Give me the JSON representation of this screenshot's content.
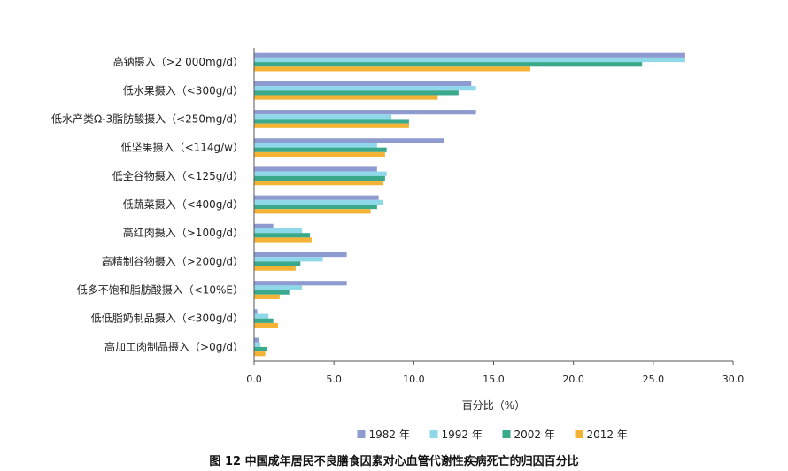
{
  "chart_data": {
    "type": "bar",
    "orientation": "horizontal",
    "categories": [
      "高钠摄入（>2 000mg/d）",
      "低水果摄入（<300g/d）",
      "低水产类Ω-3脂肪酸摄入（<250mg/d）",
      "低坚果摄入（<114g/w）",
      "低全谷物摄入（<125g/d）",
      "低蔬菜摄入（<400g/d）",
      "高红肉摄入（>100g/d）",
      "高精制谷物摄入（>200g/d）",
      "低多不饱和脂肪酸摄入（<10%E）",
      "低低脂奶制品摄入（<300g/d）",
      "高加工肉制品摄入（>0g/d）"
    ],
    "series": [
      {
        "name": "1982 年",
        "color": "#8e9bd0",
        "values": [
          27.0,
          13.6,
          13.9,
          11.9,
          7.7,
          7.8,
          1.2,
          5.8,
          5.8,
          0.2,
          0.3
        ]
      },
      {
        "name": "1992 年",
        "color": "#8fd8ea",
        "values": [
          27.0,
          13.9,
          8.6,
          7.7,
          8.3,
          8.1,
          3.0,
          4.3,
          3.0,
          0.9,
          0.4
        ]
      },
      {
        "name": "2002 年",
        "color": "#3aa88a",
        "values": [
          24.3,
          12.8,
          9.7,
          8.3,
          8.2,
          7.7,
          3.5,
          2.9,
          2.2,
          1.2,
          0.8
        ]
      },
      {
        "name": "2012 年",
        "color": "#f5b335",
        "values": [
          17.3,
          11.5,
          9.7,
          8.2,
          8.1,
          7.3,
          3.6,
          2.6,
          1.6,
          1.5,
          0.7
        ]
      }
    ],
    "xlim": [
      0,
      30
    ],
    "xticks": [
      "0.0",
      "5.0",
      "10.0",
      "15.0",
      "20.0",
      "25.0",
      "30.0"
    ],
    "xlabel": "百分比（%）",
    "legend_position": "bottom",
    "caption": "图 12    中国成年居民不良膳食因素对心血管代谢性疾病死亡的归因百分比"
  }
}
